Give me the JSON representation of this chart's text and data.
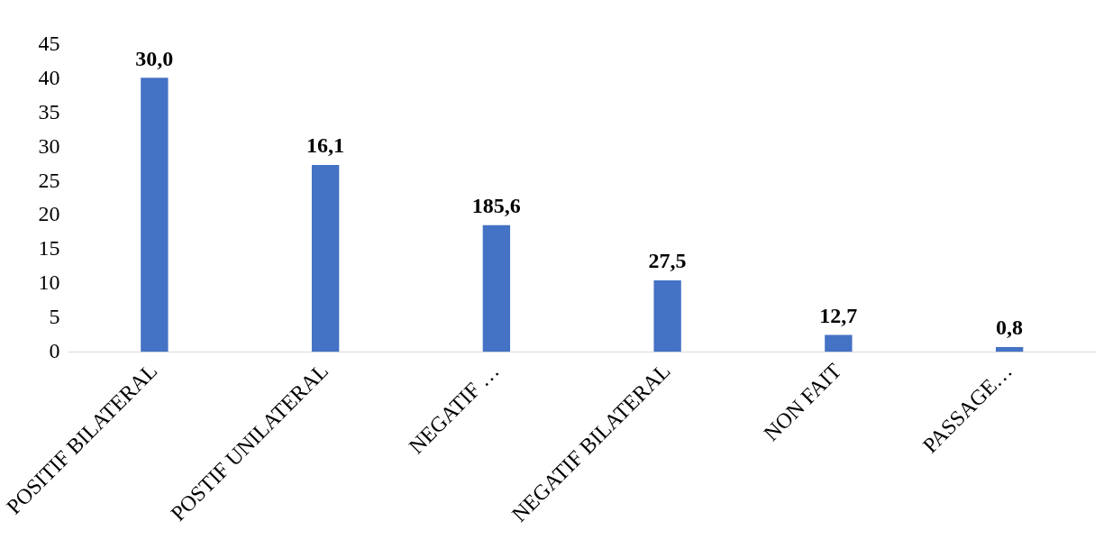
{
  "chart_data": {
    "type": "bar",
    "categories": [
      "POSITIF BILATERAL",
      "POSTIF UNILATERAL",
      "NEGATIF …",
      "NEGATIF BILATERAL",
      "NON FAIT",
      "PASSAGE…"
    ],
    "values": [
      40.2,
      27.4,
      18.6,
      10.5,
      2.5,
      0.7
    ],
    "annotations": [
      {
        "text": "30,0",
        "x": "POSITIF BILATERAL",
        "y": 40.2
      },
      {
        "text": "16,1",
        "x": "POSTIF UNILATERAL",
        "y": 27.4
      },
      {
        "text": "185,6",
        "x": "NEGATIF …",
        "y": 18.6
      },
      {
        "text": "27,5",
        "x": "NEGATIF BILATERAL",
        "y": 10.5
      },
      {
        "text": "12,7",
        "x": "NON FAIT",
        "y": 2.5
      },
      {
        "text": "0,8",
        "x": "PASSAGE…",
        "y": 0.7
      }
    ],
    "color": "#4472c4",
    "ylim": [
      0,
      45
    ],
    "yticks": [
      0,
      5,
      10,
      15,
      20,
      25,
      30,
      35,
      40,
      45
    ],
    "grid": false,
    "legend": false
  }
}
